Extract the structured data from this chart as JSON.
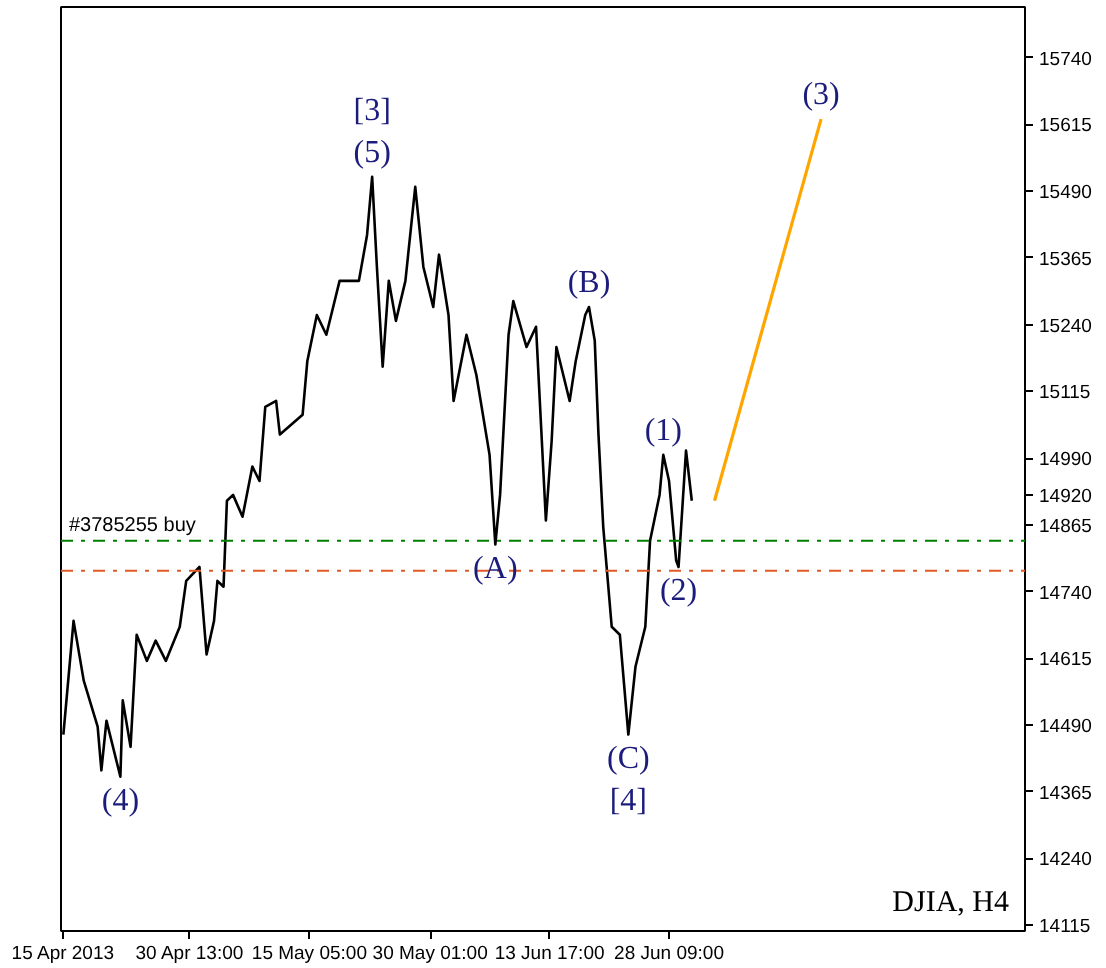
{
  "chart_data": {
    "type": "line",
    "xlim": [
      "2013-04-14T17:00",
      "2013-08-11T02:00"
    ],
    "ylim": [
      14104,
      15835
    ],
    "xticks": [
      {
        "value": "2013-04-15T00:00",
        "label": "15 Apr 2013"
      },
      {
        "value": "2013-04-30T13:00",
        "label": "30 Apr 13:00"
      },
      {
        "value": "2013-05-15T05:00",
        "label": "15 May 05:00"
      },
      {
        "value": "2013-05-30T01:00",
        "label": "30 May 01:00"
      },
      {
        "value": "2013-06-13T17:00",
        "label": "13 Jun 17:00"
      },
      {
        "value": "2013-06-28T09:00",
        "label": "28 Jun 09:00"
      }
    ],
    "yticks": [
      14115,
      14240,
      14365,
      14490,
      14615,
      14740,
      14865,
      14920,
      14990,
      15115,
      15240,
      15365,
      15490,
      15615,
      15740
    ],
    "grid": false,
    "line_style": "solid",
    "marker": "none",
    "series": [
      {
        "color": "#000000",
        "x": [
          "2013-04-15T00:00",
          "2013-04-16T06:00",
          "2013-04-17T12:00",
          "2013-04-19T05:00",
          "2013-04-19T16:00",
          "2013-04-20T07:00",
          "2013-04-22T00:00",
          "2013-04-22T07:00",
          "2013-04-23T06:00",
          "2013-04-24T00:00",
          "2013-04-25T06:00",
          "2013-04-26T08:00",
          "2013-04-27T14:00",
          "2013-04-29T07:00",
          "2013-04-30T02:00",
          "2013-05-01T17:00",
          "2013-05-02T14:00",
          "2013-05-03T12:00",
          "2013-05-03T22:00",
          "2013-05-04T16:00",
          "2013-05-05T02:00",
          "2013-05-05T20:00",
          "2013-05-07T00:00",
          "2013-05-08T05:00",
          "2013-05-09T02:00",
          "2013-05-09T19:00",
          "2013-05-11T03:00",
          "2013-05-11T14:00",
          "2013-05-14T09:00",
          "2013-05-14T23:00",
          "2013-05-16T03:00",
          "2013-05-17T07:00",
          "2013-05-18T22:00",
          "2013-05-21T07:00",
          "2013-05-22T07:00",
          "2013-05-22T22:00",
          "2013-05-23T12:00",
          "2013-05-24T05:00",
          "2013-05-24T23:00",
          "2013-05-25T20:00",
          "2013-05-27T00:00",
          "2013-05-28T05:00",
          "2013-05-29T05:00",
          "2013-05-30T10:00",
          "2013-05-31T03:00",
          "2013-06-01T07:00",
          "2013-06-01T22:00",
          "2013-06-03T12:00",
          "2013-06-04T17:00",
          "2013-06-06T08:00",
          "2013-06-07T01:00",
          "2013-06-07T15:00",
          "2013-06-08T16:00",
          "2013-06-09T06:00",
          "2013-06-10T21:00",
          "2013-06-12T01:00",
          "2013-06-13T06:00",
          "2013-06-13T23:00",
          "2013-06-14T13:00",
          "2013-06-16T04:00",
          "2013-06-16T22:00",
          "2013-06-18T02:00",
          "2013-06-18T13:00",
          "2013-06-19T06:00",
          "2013-06-19T17:00",
          "2013-06-20T07:00",
          "2013-06-21T08:00",
          "2013-06-22T08:00",
          "2013-06-23T09:00",
          "2013-06-24T06:00",
          "2013-06-25T11:00",
          "2013-06-26T01:00",
          "2013-06-27T05:00",
          "2013-06-27T16:00",
          "2013-06-28T09:00",
          "2013-06-29T06:00",
          "2013-06-29T13:00",
          "2013-06-30T11:00",
          "2013-07-01T04:00"
        ],
        "values": [
          14472,
          14685,
          14573,
          14487,
          14405,
          14498,
          14393,
          14536,
          14449,
          14659,
          14610,
          14648,
          14610,
          14674,
          14760,
          14786,
          14622,
          14685,
          14760,
          14749,
          14910,
          14921,
          14880,
          14974,
          14947,
          15086,
          15097,
          15034,
          15071,
          15172,
          15258,
          15221,
          15322,
          15322,
          15408,
          15517,
          15348,
          15161,
          15322,
          15247,
          15322,
          15498,
          15348,
          15273,
          15371,
          15258,
          15097,
          15221,
          15146,
          14996,
          14828,
          14921,
          15221,
          15284,
          15198,
          15236,
          14873,
          15022,
          15198,
          15097,
          15172,
          15258,
          15273,
          15210,
          15034,
          14861,
          14674,
          14659,
          14472,
          14599,
          14674,
          14835,
          14921,
          14996,
          14947,
          14798,
          14786,
          15004,
          14910
        ]
      },
      {
        "color": "#ffa500",
        "x": [
          "2013-07-03T23:00",
          "2013-07-17T01:00"
        ],
        "values": [
          14910,
          15625
        ]
      }
    ],
    "ref_lines": [
      {
        "axis": "y",
        "value": 14835,
        "label": "#3785255 buy",
        "color": "#008000",
        "line_style": "dashed"
      },
      {
        "axis": "y",
        "value": 14779,
        "color": "#e05a28",
        "line_style": "dashed"
      }
    ],
    "annotations": [
      {
        "text": "[3]",
        "x": "2013-05-22T22:00",
        "y": 15517
      },
      {
        "text": "(5)",
        "x": "2013-05-22T22:00",
        "y": 15517
      },
      {
        "text": "(B)",
        "x": "2013-06-18T13:00",
        "y": 15273
      },
      {
        "text": "(1)",
        "x": "2013-06-27T16:00",
        "y": 14996
      },
      {
        "text": "(3)",
        "x": "2013-07-17T01:00",
        "y": 15625
      },
      {
        "text": "(A)",
        "x": "2013-06-07T01:00",
        "y": 14828
      },
      {
        "text": "(2)",
        "x": "2013-06-29T13:00",
        "y": 14786
      },
      {
        "text": "(4)",
        "x": "2013-04-22T00:00",
        "y": 14393
      },
      {
        "text": "(C)",
        "x": "2013-06-23T09:00",
        "y": 14472
      },
      {
        "text": "[4]",
        "x": "2013-06-23T09:00",
        "y": 14472
      },
      "DJIA, H4"
    ]
  }
}
